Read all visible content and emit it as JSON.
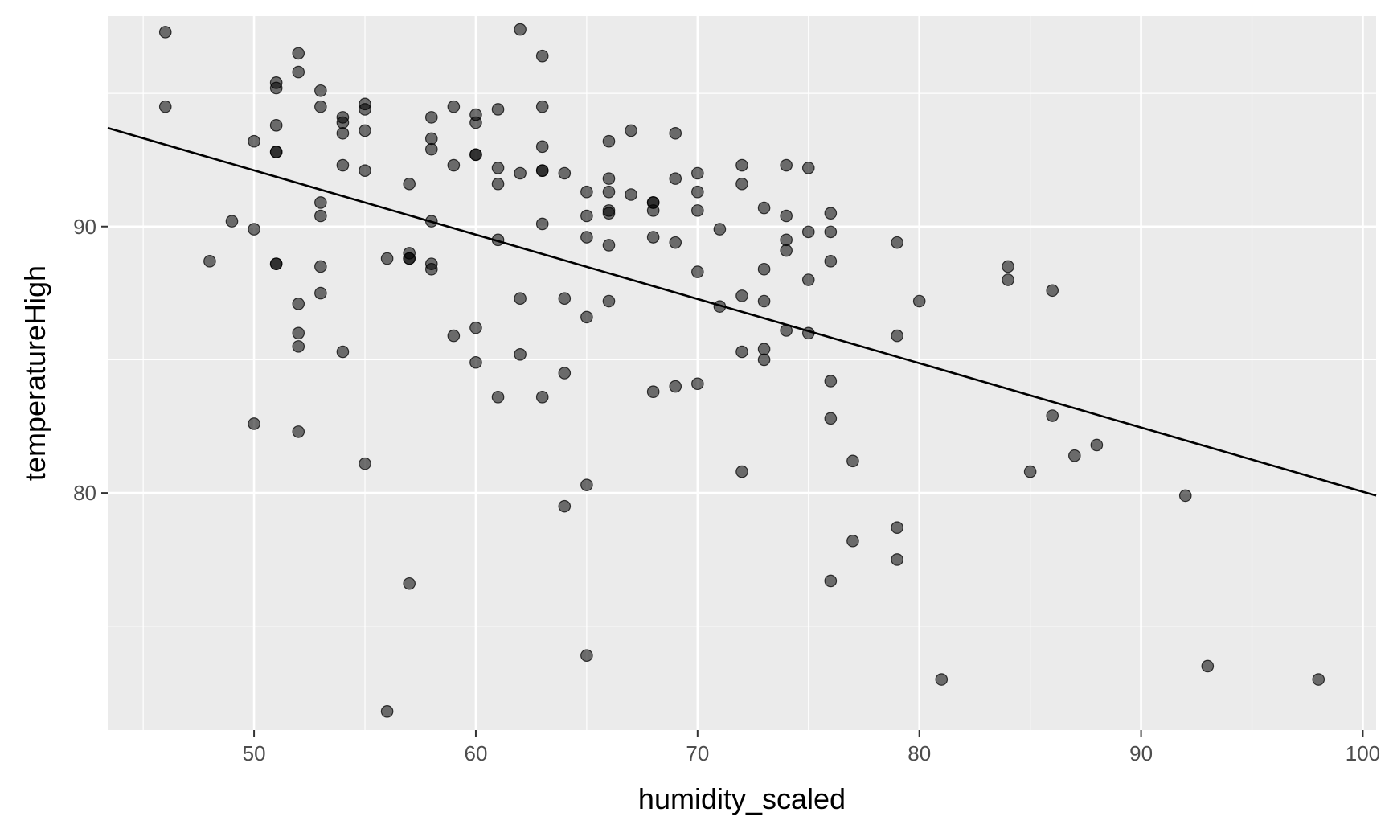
{
  "chart_data": {
    "type": "scatter",
    "title": "",
    "xlabel": "humidity_scaled",
    "ylabel": "temperatureHigh",
    "xlim": [
      43.4,
      100.6
    ],
    "ylim": [
      71.1,
      97.9
    ],
    "x_ticks": [
      50,
      60,
      70,
      80,
      90,
      100
    ],
    "y_ticks": [
      80,
      90
    ],
    "x_tick_labels": [
      "50",
      "60",
      "70",
      "80",
      "90",
      "100"
    ],
    "y_tick_labels": [
      "80",
      "90"
    ],
    "grid": true,
    "legend": "none",
    "colors": {
      "panel": "#ebebeb",
      "grid": "#ffffff",
      "point": "#000000",
      "line": "#000000"
    },
    "point_opacity": 0.55,
    "fit_line": {
      "x": [
        43.4,
        100.6
      ],
      "y": [
        93.7,
        79.9
      ]
    },
    "points": [
      [
        46,
        97.3
      ],
      [
        46,
        94.5
      ],
      [
        48,
        88.7
      ],
      [
        49,
        90.2
      ],
      [
        50,
        93.2
      ],
      [
        50,
        89.9
      ],
      [
        50,
        82.6
      ],
      [
        51,
        95.4
      ],
      [
        51,
        95.2
      ],
      [
        51,
        93.8
      ],
      [
        51,
        92.8
      ],
      [
        51,
        92.8
      ],
      [
        51,
        88.6
      ],
      [
        51,
        88.6
      ],
      [
        52,
        96.5
      ],
      [
        52,
        95.8
      ],
      [
        52,
        87.1
      ],
      [
        52,
        86.0
      ],
      [
        52,
        85.5
      ],
      [
        52,
        82.3
      ],
      [
        53,
        95.1
      ],
      [
        53,
        94.5
      ],
      [
        53,
        90.9
      ],
      [
        53,
        90.4
      ],
      [
        53,
        88.5
      ],
      [
        53,
        87.5
      ],
      [
        54,
        94.1
      ],
      [
        54,
        93.9
      ],
      [
        54,
        93.5
      ],
      [
        54,
        92.3
      ],
      [
        54,
        85.3
      ],
      [
        55,
        94.6
      ],
      [
        55,
        94.4
      ],
      [
        55,
        93.6
      ],
      [
        55,
        92.1
      ],
      [
        55,
        81.1
      ],
      [
        56,
        88.8
      ],
      [
        56,
        71.8
      ],
      [
        57,
        91.6
      ],
      [
        57,
        89.0
      ],
      [
        57,
        88.8
      ],
      [
        57,
        88.8
      ],
      [
        57,
        76.6
      ],
      [
        58,
        94.1
      ],
      [
        58,
        93.3
      ],
      [
        58,
        92.9
      ],
      [
        58,
        90.2
      ],
      [
        58,
        88.6
      ],
      [
        58,
        88.4
      ],
      [
        59,
        94.5
      ],
      [
        59,
        92.3
      ],
      [
        59,
        85.9
      ],
      [
        60,
        94.2
      ],
      [
        60,
        93.9
      ],
      [
        60,
        92.7
      ],
      [
        60,
        92.7
      ],
      [
        60,
        86.2
      ],
      [
        60,
        84.9
      ],
      [
        61,
        94.4
      ],
      [
        61,
        92.2
      ],
      [
        61,
        91.6
      ],
      [
        61,
        89.5
      ],
      [
        61,
        83.6
      ],
      [
        62,
        97.4
      ],
      [
        62,
        92.0
      ],
      [
        62,
        87.3
      ],
      [
        62,
        85.2
      ],
      [
        63,
        96.4
      ],
      [
        63,
        94.5
      ],
      [
        63,
        93.0
      ],
      [
        63,
        92.1
      ],
      [
        63,
        92.1
      ],
      [
        63,
        90.1
      ],
      [
        63,
        83.6
      ],
      [
        64,
        92.0
      ],
      [
        64,
        87.3
      ],
      [
        64,
        84.5
      ],
      [
        64,
        79.5
      ],
      [
        65,
        91.3
      ],
      [
        65,
        90.4
      ],
      [
        65,
        89.6
      ],
      [
        65,
        86.6
      ],
      [
        65,
        80.3
      ],
      [
        65,
        73.9
      ],
      [
        66,
        93.2
      ],
      [
        66,
        91.8
      ],
      [
        66,
        91.3
      ],
      [
        66,
        90.6
      ],
      [
        66,
        90.5
      ],
      [
        66,
        89.3
      ],
      [
        66,
        87.2
      ],
      [
        67,
        93.6
      ],
      [
        67,
        91.2
      ],
      [
        68,
        90.9
      ],
      [
        68,
        90.9
      ],
      [
        68,
        90.6
      ],
      [
        68,
        89.6
      ],
      [
        68,
        83.8
      ],
      [
        69,
        93.5
      ],
      [
        69,
        91.8
      ],
      [
        69,
        89.4
      ],
      [
        69,
        84.0
      ],
      [
        70,
        92.0
      ],
      [
        70,
        91.3
      ],
      [
        70,
        90.6
      ],
      [
        70,
        88.3
      ],
      [
        70,
        84.1
      ],
      [
        71,
        89.9
      ],
      [
        71,
        87.0
      ],
      [
        72,
        92.3
      ],
      [
        72,
        91.6
      ],
      [
        72,
        87.4
      ],
      [
        72,
        85.3
      ],
      [
        72,
        80.8
      ],
      [
        73,
        90.7
      ],
      [
        73,
        88.4
      ],
      [
        73,
        87.2
      ],
      [
        73,
        85.4
      ],
      [
        73,
        85.0
      ],
      [
        74,
        92.3
      ],
      [
        74,
        90.4
      ],
      [
        74,
        89.5
      ],
      [
        74,
        89.1
      ],
      [
        74,
        86.1
      ],
      [
        75,
        92.2
      ],
      [
        75,
        89.8
      ],
      [
        75,
        88.0
      ],
      [
        75,
        86.0
      ],
      [
        76,
        90.5
      ],
      [
        76,
        89.8
      ],
      [
        76,
        88.7
      ],
      [
        76,
        84.2
      ],
      [
        76,
        82.8
      ],
      [
        76,
        76.7
      ],
      [
        77,
        81.2
      ],
      [
        77,
        78.2
      ],
      [
        79,
        89.4
      ],
      [
        79,
        85.9
      ],
      [
        79,
        78.7
      ],
      [
        79,
        77.5
      ],
      [
        80,
        87.2
      ],
      [
        81,
        73.0
      ],
      [
        84,
        88.5
      ],
      [
        84,
        88.0
      ],
      [
        85,
        80.8
      ],
      [
        86,
        87.6
      ],
      [
        86,
        82.9
      ],
      [
        87,
        81.4
      ],
      [
        88,
        81.8
      ],
      [
        92,
        79.9
      ],
      [
        93,
        73.5
      ],
      [
        98,
        73.0
      ]
    ]
  }
}
